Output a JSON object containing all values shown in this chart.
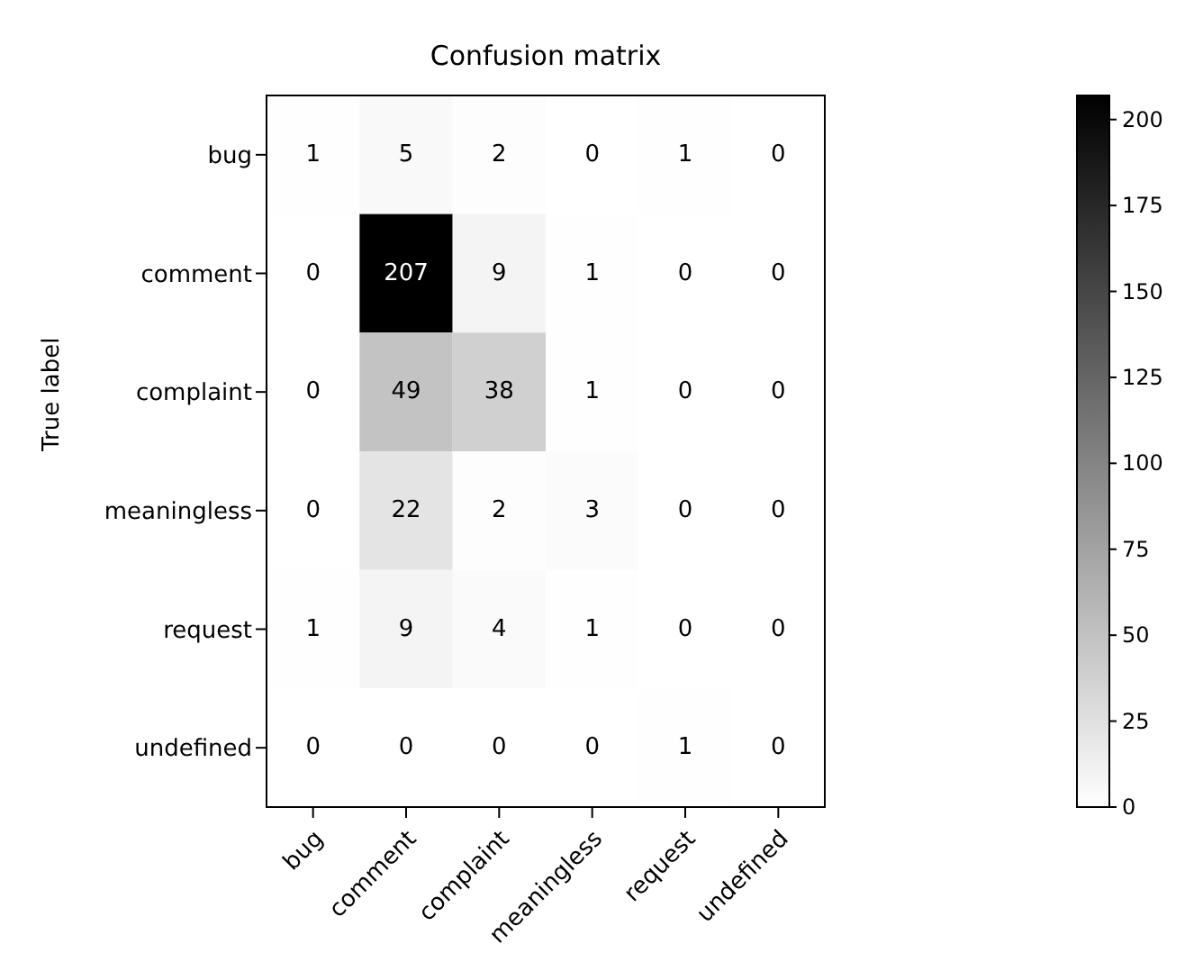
{
  "chart_data": {
    "type": "heatmap",
    "title": "Confusion matrix",
    "ylabel": "True label",
    "categories": [
      "bug",
      "comment",
      "complaint",
      "meaningless",
      "request",
      "undefined"
    ],
    "y_categories": [
      "bug",
      "comment",
      "complaint",
      "meaningless",
      "request",
      "undefined"
    ],
    "cells": [
      [
        1,
        5,
        2,
        0,
        1,
        0
      ],
      [
        0,
        207,
        9,
        1,
        0,
        0
      ],
      [
        0,
        49,
        38,
        1,
        0,
        0
      ],
      [
        0,
        22,
        2,
        3,
        0,
        0
      ],
      [
        1,
        9,
        4,
        1,
        0,
        0
      ],
      [
        0,
        0,
        0,
        0,
        1,
        0
      ]
    ],
    "clim": [
      0,
      207
    ],
    "cticks": [
      0,
      25,
      50,
      75,
      100,
      125,
      150,
      175,
      200
    ],
    "data_labels": true
  }
}
